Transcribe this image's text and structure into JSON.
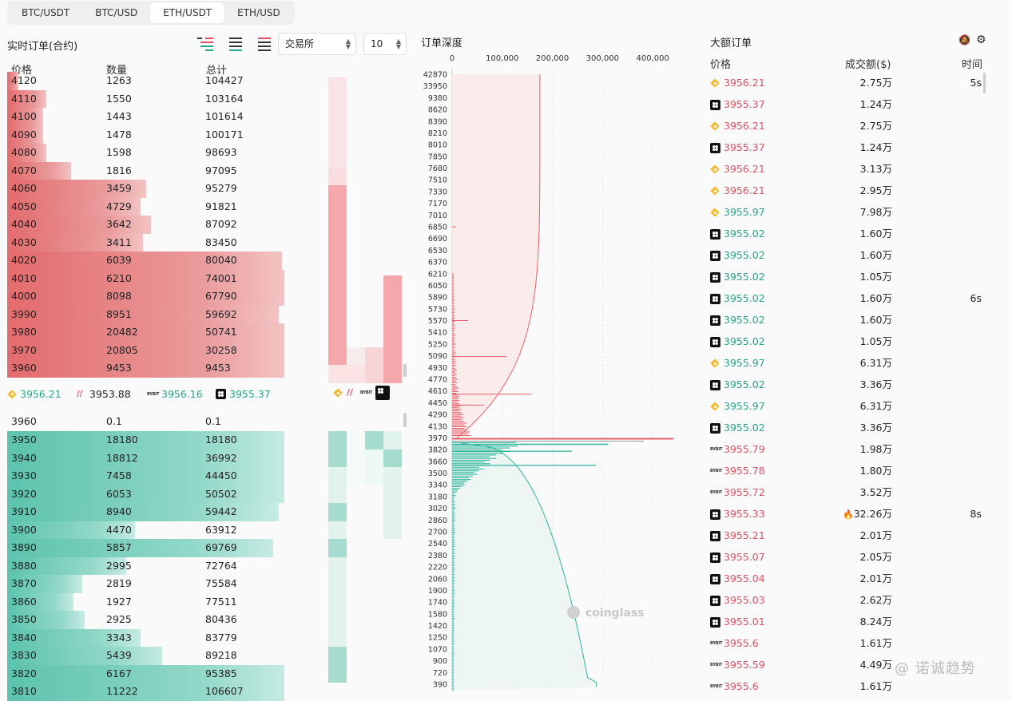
{
  "pair_tabs": [
    {
      "label": "BTC/USDT",
      "active": false
    },
    {
      "label": "BTC/USD",
      "active": false
    },
    {
      "label": "ETH/USDT",
      "active": true
    },
    {
      "label": "ETH/USD",
      "active": false
    }
  ],
  "orderbook": {
    "title": "实时订单(合约)",
    "exchange_select": "交易所",
    "depth_select": "10",
    "headers": {
      "price": "价格",
      "qty": "数量",
      "total": "总计"
    },
    "asks": [
      {
        "price": "4120",
        "qty": "1263",
        "total": "104427",
        "w": 0.04
      },
      {
        "price": "4110",
        "qty": "1550",
        "total": "103164",
        "w": 0.14
      },
      {
        "price": "4100",
        "qty": "1443",
        "total": "101614",
        "w": 0.13
      },
      {
        "price": "4090",
        "qty": "1478",
        "total": "100171",
        "w": 0.13
      },
      {
        "price": "4080",
        "qty": "1598",
        "total": "98693",
        "w": 0.14
      },
      {
        "price": "4070",
        "qty": "1816",
        "total": "97095",
        "w": 0.23
      },
      {
        "price": "4060",
        "qty": "3459",
        "total": "95279",
        "w": 0.5
      },
      {
        "price": "4050",
        "qty": "4729",
        "total": "91821",
        "w": 0.48
      },
      {
        "price": "4040",
        "qty": "3642",
        "total": "87092",
        "w": 0.52
      },
      {
        "price": "4030",
        "qty": "3411",
        "total": "83450",
        "w": 0.49
      },
      {
        "price": "4020",
        "qty": "6039",
        "total": "80040",
        "w": 0.99
      },
      {
        "price": "4010",
        "qty": "6210",
        "total": "74001",
        "w": 1.0
      },
      {
        "price": "4000",
        "qty": "8098",
        "total": "67790",
        "w": 1.0
      },
      {
        "price": "3990",
        "qty": "8951",
        "total": "59692",
        "w": 0.98
      },
      {
        "price": "3980",
        "qty": "20482",
        "total": "50741",
        "w": 1.0
      },
      {
        "price": "3970",
        "qty": "20805",
        "total": "30258",
        "w": 1.0
      },
      {
        "price": "3960",
        "qty": "9453",
        "total": "9453",
        "w": 1.0
      }
    ],
    "mid": [
      {
        "ex": "bnb",
        "price": "3956.21",
        "color": "green"
      },
      {
        "ex": "bitmex",
        "price": "3953.88",
        "color": "dark"
      },
      {
        "ex": "bybit",
        "price": "3956.16",
        "color": "green"
      },
      {
        "ex": "okx",
        "price": "3955.37",
        "color": "green"
      }
    ],
    "zero_bid": {
      "price": "3960",
      "qty": "0.1",
      "total": "0.1"
    },
    "bids": [
      {
        "price": "3950",
        "qty": "18180",
        "total": "18180",
        "w": 1.0
      },
      {
        "price": "3940",
        "qty": "18812",
        "total": "36992",
        "w": 1.0
      },
      {
        "price": "3930",
        "qty": "7458",
        "total": "44450",
        "w": 1.0
      },
      {
        "price": "3920",
        "qty": "6053",
        "total": "50502",
        "w": 1.0
      },
      {
        "price": "3910",
        "qty": "8940",
        "total": "59442",
        "w": 0.98
      },
      {
        "price": "3900",
        "qty": "4470",
        "total": "63912",
        "w": 0.46
      },
      {
        "price": "3890",
        "qty": "5857",
        "total": "69769",
        "w": 0.96
      },
      {
        "price": "3880",
        "qty": "2995",
        "total": "72764",
        "w": 0.43
      },
      {
        "price": "3870",
        "qty": "2819",
        "total": "75584",
        "w": 0.27
      },
      {
        "price": "3860",
        "qty": "1927",
        "total": "77511",
        "w": 0.24
      },
      {
        "price": "3850",
        "qty": "2925",
        "total": "80436",
        "w": 0.28
      },
      {
        "price": "3840",
        "qty": "3343",
        "total": "83779",
        "w": 0.48
      },
      {
        "price": "3830",
        "qty": "5439",
        "total": "89218",
        "w": 0.56
      },
      {
        "price": "3820",
        "qty": "6167",
        "total": "95385",
        "w": 1.0
      },
      {
        "price": "3810",
        "qty": "11222",
        "total": "106607",
        "w": 1.0
      }
    ]
  },
  "depth": {
    "title": "订单深度",
    "x_ticks": [
      "0",
      "100,000",
      "200,000",
      "300,000",
      "400,000"
    ],
    "x_tick_values": [
      0,
      100000,
      200000,
      300000,
      400000
    ],
    "x_max": 430000,
    "y_ticks": [
      "42870",
      "33950",
      "9380",
      "8620",
      "8390",
      "8210",
      "8010",
      "7850",
      "7680",
      "7510",
      "7330",
      "7170",
      "7010",
      "6850",
      "6690",
      "6530",
      "6370",
      "6210",
      "6050",
      "5890",
      "5730",
      "5570",
      "5410",
      "5250",
      "5090",
      "4930",
      "4770",
      "4610",
      "4450",
      "4290",
      "4130",
      "3970",
      "3820",
      "3660",
      "3500",
      "3340",
      "3180",
      "3020",
      "2860",
      "2700",
      "2540",
      "2380",
      "2220",
      "2060",
      "1900",
      "1740",
      "1580",
      "1420",
      "1250",
      "1070",
      "900",
      "720",
      "390"
    ],
    "watermark": "coinglass",
    "ask_color": "#e8606a",
    "bid_color": "#2fb59a"
  },
  "big_orders": {
    "title": "大额订单",
    "headers": {
      "price": "价格",
      "amount": "成交额($)",
      "time": "时间"
    },
    "rows": [
      {
        "ex": "bnb",
        "price": "3956.21",
        "side": "red",
        "amount": "2.75万",
        "time": "5s"
      },
      {
        "ex": "okx",
        "price": "3955.37",
        "side": "red",
        "amount": "1.24万",
        "time": ""
      },
      {
        "ex": "bnb",
        "price": "3956.21",
        "side": "red",
        "amount": "2.75万",
        "time": ""
      },
      {
        "ex": "okx",
        "price": "3955.37",
        "side": "red",
        "amount": "1.24万",
        "time": ""
      },
      {
        "ex": "bnb",
        "price": "3956.21",
        "side": "red",
        "amount": "3.13万",
        "time": ""
      },
      {
        "ex": "bnb",
        "price": "3956.21",
        "side": "red",
        "amount": "2.95万",
        "time": ""
      },
      {
        "ex": "bnb",
        "price": "3955.97",
        "side": "green",
        "amount": "7.98万",
        "time": ""
      },
      {
        "ex": "okx",
        "price": "3955.02",
        "side": "green",
        "amount": "1.60万",
        "time": ""
      },
      {
        "ex": "okx",
        "price": "3955.02",
        "side": "green",
        "amount": "1.60万",
        "time": ""
      },
      {
        "ex": "okx",
        "price": "3955.02",
        "side": "green",
        "amount": "1.05万",
        "time": ""
      },
      {
        "ex": "okx",
        "price": "3955.02",
        "side": "green",
        "amount": "1.60万",
        "time": "6s"
      },
      {
        "ex": "okx",
        "price": "3955.02",
        "side": "green",
        "amount": "1.60万",
        "time": ""
      },
      {
        "ex": "okx",
        "price": "3955.02",
        "side": "green",
        "amount": "1.05万",
        "time": ""
      },
      {
        "ex": "bnb",
        "price": "3955.97",
        "side": "green",
        "amount": "6.31万",
        "time": ""
      },
      {
        "ex": "okx",
        "price": "3955.02",
        "side": "green",
        "amount": "3.36万",
        "time": ""
      },
      {
        "ex": "bnb",
        "price": "3955.97",
        "side": "green",
        "amount": "6.31万",
        "time": ""
      },
      {
        "ex": "okx",
        "price": "3955.02",
        "side": "green",
        "amount": "3.36万",
        "time": ""
      },
      {
        "ex": "bybit",
        "price": "3955.79",
        "side": "red",
        "amount": "1.98万",
        "time": ""
      },
      {
        "ex": "bybit",
        "price": "3955.78",
        "side": "red",
        "amount": "1.80万",
        "time": ""
      },
      {
        "ex": "bybit",
        "price": "3955.72",
        "side": "red",
        "amount": "3.52万",
        "time": ""
      },
      {
        "ex": "okx",
        "price": "3955.33",
        "side": "red",
        "amount": "32.26万",
        "time": "8s",
        "fire": true
      },
      {
        "ex": "okx",
        "price": "3955.21",
        "side": "red",
        "amount": "2.01万",
        "time": ""
      },
      {
        "ex": "okx",
        "price": "3955.07",
        "side": "red",
        "amount": "2.05万",
        "time": ""
      },
      {
        "ex": "okx",
        "price": "3955.04",
        "side": "red",
        "amount": "2.01万",
        "time": ""
      },
      {
        "ex": "okx",
        "price": "3955.03",
        "side": "red",
        "amount": "2.62万",
        "time": ""
      },
      {
        "ex": "okx",
        "price": "3955.01",
        "side": "red",
        "amount": "8.24万",
        "time": ""
      },
      {
        "ex": "bybit",
        "price": "3955.6",
        "side": "red",
        "amount": "1.61万",
        "time": ""
      },
      {
        "ex": "bybit",
        "price": "3955.59",
        "side": "red",
        "amount": "4.49万",
        "time": ""
      },
      {
        "ex": "bybit",
        "price": "3955.6",
        "side": "red",
        "amount": "1.61万",
        "time": ""
      }
    ]
  },
  "watermark": "@ 诺诚趋势"
}
